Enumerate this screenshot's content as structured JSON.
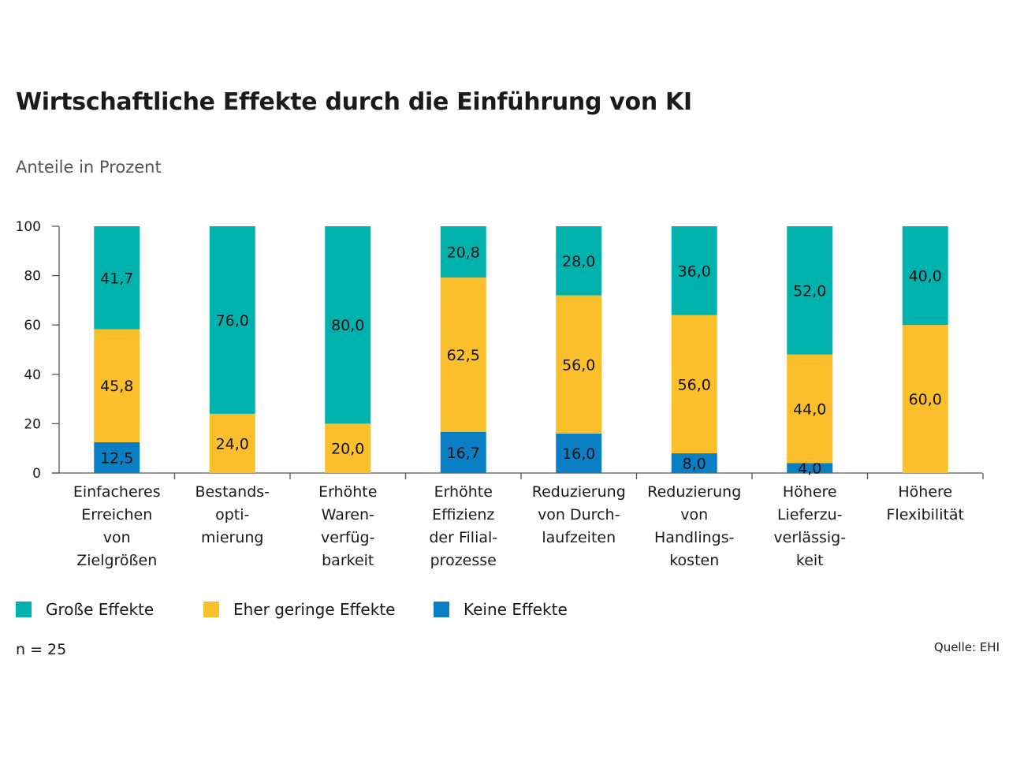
{
  "header": {
    "title": "Wirtschaftliche Effekte durch die Einführung von KI",
    "subtitle": "Anteile in Prozent"
  },
  "chart_data": {
    "type": "bar",
    "stacked": true,
    "title": "Wirtschaftliche Effekte durch die Einführung von KI",
    "ylabel": "Anteile in Prozent",
    "ylim": [
      0,
      100
    ],
    "yticks": [
      "0",
      "20",
      "40",
      "60",
      "80",
      "100"
    ],
    "categories": [
      [
        "Einfacheres",
        "Erreichen",
        "von",
        "Zielgrößen"
      ],
      [
        "Bestands-",
        "opti-",
        "mierung"
      ],
      [
        "Erhöhte",
        "Waren-",
        "verfüg-",
        "barkeit"
      ],
      [
        "Erhöhte",
        "Effizienz",
        "der Filial-",
        "prozesse"
      ],
      [
        "Reduzierung",
        "von Durch-",
        "laufzeiten"
      ],
      [
        "Reduzierung",
        "von",
        "Handlings-",
        "kosten"
      ],
      [
        "Höhere",
        "Lieferzu-",
        "verlässig-",
        "keit"
      ],
      [
        "Höhere",
        "Flexibilität"
      ]
    ],
    "series": [
      {
        "name": "Keine Effekte",
        "color": "#0a7fc4",
        "values": [
          12.5,
          0,
          0,
          16.7,
          16.0,
          8.0,
          4.0,
          0
        ],
        "labels": [
          "12,5",
          "",
          "",
          "16,7",
          "16,0",
          "8,0",
          "4,0",
          ""
        ]
      },
      {
        "name": "Eher geringe Effekte",
        "color": "#fbbf2c",
        "values": [
          45.8,
          24.0,
          20.0,
          62.5,
          56.0,
          56.0,
          44.0,
          60.0
        ],
        "labels": [
          "45,8",
          "24,0",
          "20,0",
          "62,5",
          "56,0",
          "56,0",
          "44,0",
          "60,0"
        ]
      },
      {
        "name": "Große Effekte",
        "color": "#00b2ad",
        "values": [
          41.7,
          76.0,
          80.0,
          20.8,
          28.0,
          36.0,
          52.0,
          40.0
        ],
        "labels": [
          "41,7",
          "76,0",
          "80,0",
          "20,8",
          "28,0",
          "36,0",
          "52,0",
          "40,0"
        ]
      }
    ],
    "legend": [
      "Große Effekte",
      "Eher geringe Effekte",
      "Keine Effekte"
    ],
    "legend_position": "bottom-left"
  },
  "legend": {
    "items": [
      {
        "label": "Große Effekte",
        "color": "#00b2ad"
      },
      {
        "label": "Eher geringe Effekte",
        "color": "#fbbf2c"
      },
      {
        "label": "Keine Effekte",
        "color": "#0a7fc4"
      }
    ]
  },
  "footer": {
    "sample_size": "n = 25",
    "source": "Quelle: EHI"
  }
}
